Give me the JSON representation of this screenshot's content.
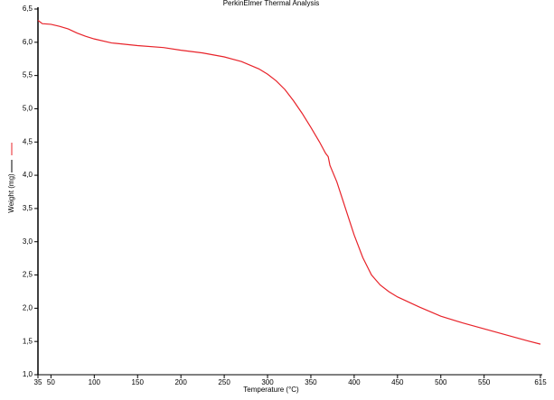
{
  "chart_data": {
    "type": "line",
    "title": "PerkinElmer Thermal Analysis",
    "x_label": "Temperature (°C)",
    "y_label": "Weight (mg)",
    "xlim": [
      35,
      615
    ],
    "ylim": [
      1.0,
      6.5
    ],
    "xticks": [
      35,
      50,
      100,
      150,
      200,
      250,
      300,
      350,
      400,
      450,
      500,
      550,
      615
    ],
    "yticks": [
      {
        "value": 1.0,
        "label": "1,0"
      },
      {
        "value": 1.5,
        "label": "1,5"
      },
      {
        "value": 2.0,
        "label": "2,0"
      },
      {
        "value": 2.5,
        "label": "2,5"
      },
      {
        "value": 3.0,
        "label": "3,0"
      },
      {
        "value": 3.5,
        "label": "3,5"
      },
      {
        "value": 4.0,
        "label": "4,0"
      },
      {
        "value": 4.5,
        "label": "4,5"
      },
      {
        "value": 5.0,
        "label": "5,0"
      },
      {
        "value": 5.5,
        "label": "5,5"
      },
      {
        "value": 6.0,
        "label": "6,0"
      },
      {
        "value": 6.5,
        "label": "6,5"
      }
    ],
    "x": [
      35,
      40,
      50,
      60,
      70,
      80,
      90,
      100,
      120,
      150,
      180,
      200,
      225,
      250,
      270,
      290,
      300,
      310,
      320,
      330,
      340,
      350,
      360,
      367,
      370,
      372,
      380,
      390,
      400,
      410,
      420,
      430,
      440,
      450,
      475,
      500,
      525,
      550,
      575,
      600,
      615
    ],
    "series": [
      {
        "color": "#e8232a",
        "values": [
          6.33,
          6.28,
          6.27,
          6.24,
          6.2,
          6.14,
          6.09,
          6.05,
          5.99,
          5.95,
          5.92,
          5.88,
          5.84,
          5.78,
          5.71,
          5.6,
          5.52,
          5.42,
          5.29,
          5.12,
          4.93,
          4.72,
          4.5,
          4.33,
          4.28,
          4.15,
          3.9,
          3.5,
          3.1,
          2.76,
          2.5,
          2.35,
          2.25,
          2.17,
          2.02,
          1.88,
          1.78,
          1.69,
          1.6,
          1.51,
          1.46
        ]
      }
    ]
  }
}
